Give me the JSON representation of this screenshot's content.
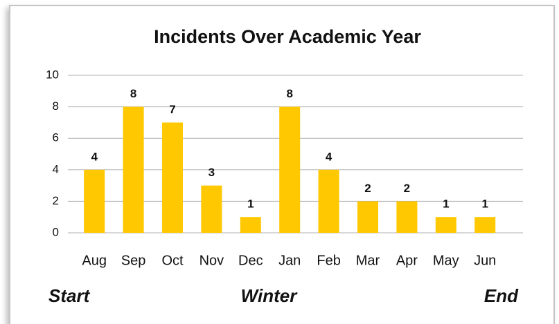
{
  "chart_data": {
    "type": "bar",
    "title": "Incidents Over Academic Year",
    "categories": [
      "Aug",
      "Sep",
      "Oct",
      "Nov",
      "Dec",
      "Jan",
      "Feb",
      "Mar",
      "Apr",
      "May",
      "Jun"
    ],
    "values": [
      4,
      8,
      7,
      3,
      1,
      8,
      4,
      2,
      2,
      1,
      1
    ],
    "color": "#ffc800",
    "ylim": [
      0,
      10
    ],
    "yticks": [
      0,
      2,
      4,
      6,
      8,
      10
    ],
    "grid": true,
    "annotations": [
      "Start",
      "Winter",
      "End"
    ]
  }
}
